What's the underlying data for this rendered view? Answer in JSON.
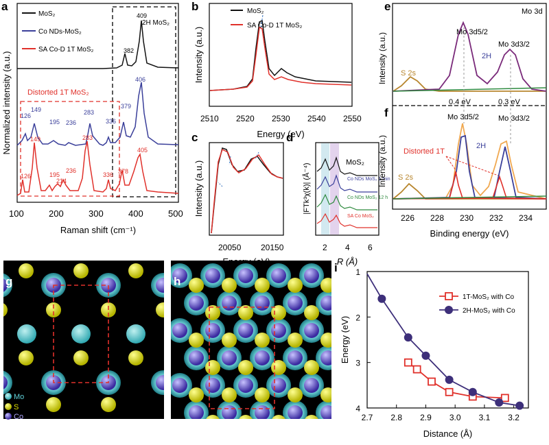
{
  "panels": {
    "a": {
      "label": "a",
      "xlabel": "Raman shift (cm⁻¹)",
      "ylabel": "Normalized intensity (a.u.)",
      "xticks": [
        "100",
        "200",
        "300",
        "400",
        "500"
      ],
      "legend": [
        "MoS₂",
        "Co NDs-MoS₂",
        "SA Co-D 1T MoS₂"
      ],
      "box_label_2h": "2H MoS₂",
      "box_label_1t": "Distorted 1T MoS₂"
    },
    "b": {
      "label": "b",
      "xlabel": "Energy (eV)",
      "ylabel": "Intensity (a.u.)",
      "xticks": [
        "2510",
        "2520",
        "2530",
        "2540",
        "2550"
      ],
      "legend": [
        "MoS₂",
        "SA Co-D 1T MoS₂"
      ]
    },
    "c": {
      "label": "c",
      "xlabel": "Energy (eV)",
      "ylabel": "Intensity (a.u.)",
      "xticks": [
        "20050",
        "20150"
      ]
    },
    "d": {
      "label": "d",
      "xlabel": "R (Å)",
      "ylabel": "|FTk³χ(k)| (Å⁻⁴)",
      "xticks": [
        "2",
        "4",
        "6"
      ],
      "labels": [
        "MoS₂",
        "Co NDs MoS₂ 1 min",
        "Co NDs MoS₂ 12 h",
        "SA Co MoS₂"
      ]
    },
    "e": {
      "label": "e",
      "title": "Mo 3d",
      "ylabel": "Intensity (a.u.)",
      "peak_labels": [
        "Mo 3d5/2",
        "Mo 3d3/2",
        "S 2s",
        "2H"
      ]
    },
    "f": {
      "label": "f",
      "xlabel": "Binding energy (eV)",
      "ylabel": "Intensity (a.u.)",
      "xticks": [
        "226",
        "228",
        "230",
        "232",
        "234"
      ],
      "peak_labels": [
        "Mo 3d5/2",
        "Mo 3d3/2",
        "S 2s",
        "2H",
        "Distorted 1T"
      ],
      "shift_labels": [
        "0.4 eV",
        "0.3 eV"
      ]
    },
    "g": {
      "label": "g",
      "legend": [
        "Mo",
        "S",
        "Co"
      ]
    },
    "h": {
      "label": "h"
    },
    "i": {
      "label": "i"
    }
  },
  "chart_data": [
    {
      "panel": "a",
      "type": "line",
      "xlim": [
        100,
        500
      ],
      "series": [
        {
          "name": "MoS₂",
          "color": "#111111",
          "peaks": [
            382,
            409
          ]
        },
        {
          "name": "Co NDs-MoS₂",
          "color": "#3a3f9a",
          "peaks": [
            126,
            149,
            195,
            236,
            283,
            336,
            379,
            406
          ]
        },
        {
          "name": "SA Co-D 1T MoS₂",
          "color": "#e0302a",
          "peaks": [
            126,
            149,
            195,
            214,
            236,
            283,
            336,
            378,
            405
          ]
        }
      ]
    },
    {
      "panel": "b",
      "type": "line",
      "xlim": [
        2510,
        2550
      ],
      "xlabel": "Energy (eV)",
      "ylabel": "Intensity (a.u.)",
      "series": [
        {
          "name": "MoS₂",
          "color": "#111111",
          "peak": 2525
        },
        {
          "name": "SA Co-D 1T MoS₂",
          "color": "#e0302a",
          "peak": 2525
        }
      ]
    },
    {
      "panel": "e",
      "type": "line",
      "xlim": [
        224.5,
        234.5
      ],
      "peaks": [
        {
          "label": "S 2s",
          "x": 226.2
        },
        {
          "label": "Mo 3d5/2",
          "x": 229.0
        },
        {
          "label": "Mo 3d3/2",
          "x": 232.2
        }
      ]
    },
    {
      "panel": "f",
      "type": "line",
      "xlim": [
        224.5,
        234.5
      ],
      "xlabel": "Binding energy (eV)",
      "peaks": [
        {
          "label": "S 2s",
          "x": 225.9
        },
        {
          "label": "Distorted 1T",
          "x": 228.4
        },
        {
          "label": "Mo 3d5/2",
          "x": 228.6
        },
        {
          "label": "Distorted 1T",
          "x": 231.5
        },
        {
          "label": "Mo 3d3/2",
          "x": 231.9
        }
      ]
    },
    {
      "panel": "i",
      "type": "line",
      "xlabel": "Distance (Å)",
      "ylabel": "Energy (eV)",
      "xlim": [
        2.7,
        3.25
      ],
      "ylim": [
        4,
        1
      ],
      "y_inverted": true,
      "xticks": [
        "2.7",
        "2.8",
        "2.9",
        "3.0",
        "3.1",
        "3.2"
      ],
      "yticks": [
        "1",
        "2",
        "3",
        "4"
      ],
      "legend_position": "top-right",
      "series": [
        {
          "name": "1T-MoS₂ with Co",
          "color": "#e0302a",
          "marker": "open-square",
          "x": [
            2.84,
            2.87,
            2.92,
            2.98,
            3.06,
            3.17
          ],
          "y": [
            3.0,
            3.15,
            3.42,
            3.65,
            3.75,
            3.78
          ]
        },
        {
          "name": "2H-MoS₂ with Co",
          "color": "#3d2f7a",
          "marker": "filled-circle",
          "x": [
            2.75,
            2.84,
            2.9,
            2.98,
            3.06,
            3.15,
            3.22
          ],
          "y": [
            1.6,
            2.45,
            2.85,
            3.38,
            3.65,
            3.88,
            3.95
          ]
        }
      ]
    }
  ]
}
